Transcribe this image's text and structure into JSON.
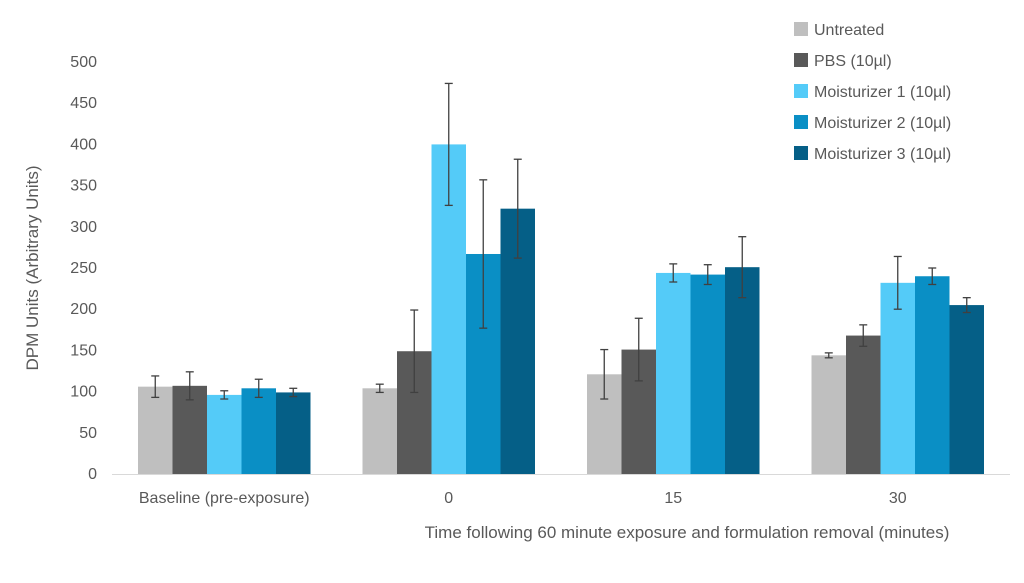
{
  "chart_data": {
    "type": "bar",
    "title": "",
    "xlabel": "Time following 60 minute exposure and formulation removal (minutes)",
    "ylabel": "DPM Units (Arbitrary Units)",
    "ylim": [
      0,
      500
    ],
    "ytick_step": 50,
    "grid": false,
    "legend_position": "top-right",
    "categories": [
      "Baseline (pre-exposure)",
      "0",
      "15",
      "30"
    ],
    "series": [
      {
        "name": "Untreated",
        "color": "#bfbfbf",
        "values": [
          106,
          104,
          121,
          144
        ],
        "errors": [
          13,
          5,
          30,
          3
        ]
      },
      {
        "name": "PBS (10µl)",
        "color": "#595959",
        "values": [
          107,
          149,
          151,
          168
        ],
        "errors": [
          17,
          50,
          38,
          13
        ]
      },
      {
        "name": "Moisturizer 1 (10µl)",
        "color": "#54cbf8",
        "values": [
          96,
          400,
          244,
          232
        ],
        "errors": [
          5,
          74,
          11,
          32
        ]
      },
      {
        "name": "Moisturizer 2 (10µl)",
        "color": "#0a8fc5",
        "values": [
          104,
          267,
          242,
          240
        ],
        "errors": [
          11,
          90,
          12,
          10
        ]
      },
      {
        "name": "Moisturizer 3 (10µl)",
        "color": "#055f87",
        "values": [
          99,
          322,
          251,
          205
        ],
        "errors": [
          5,
          60,
          37,
          9
        ]
      }
    ]
  }
}
